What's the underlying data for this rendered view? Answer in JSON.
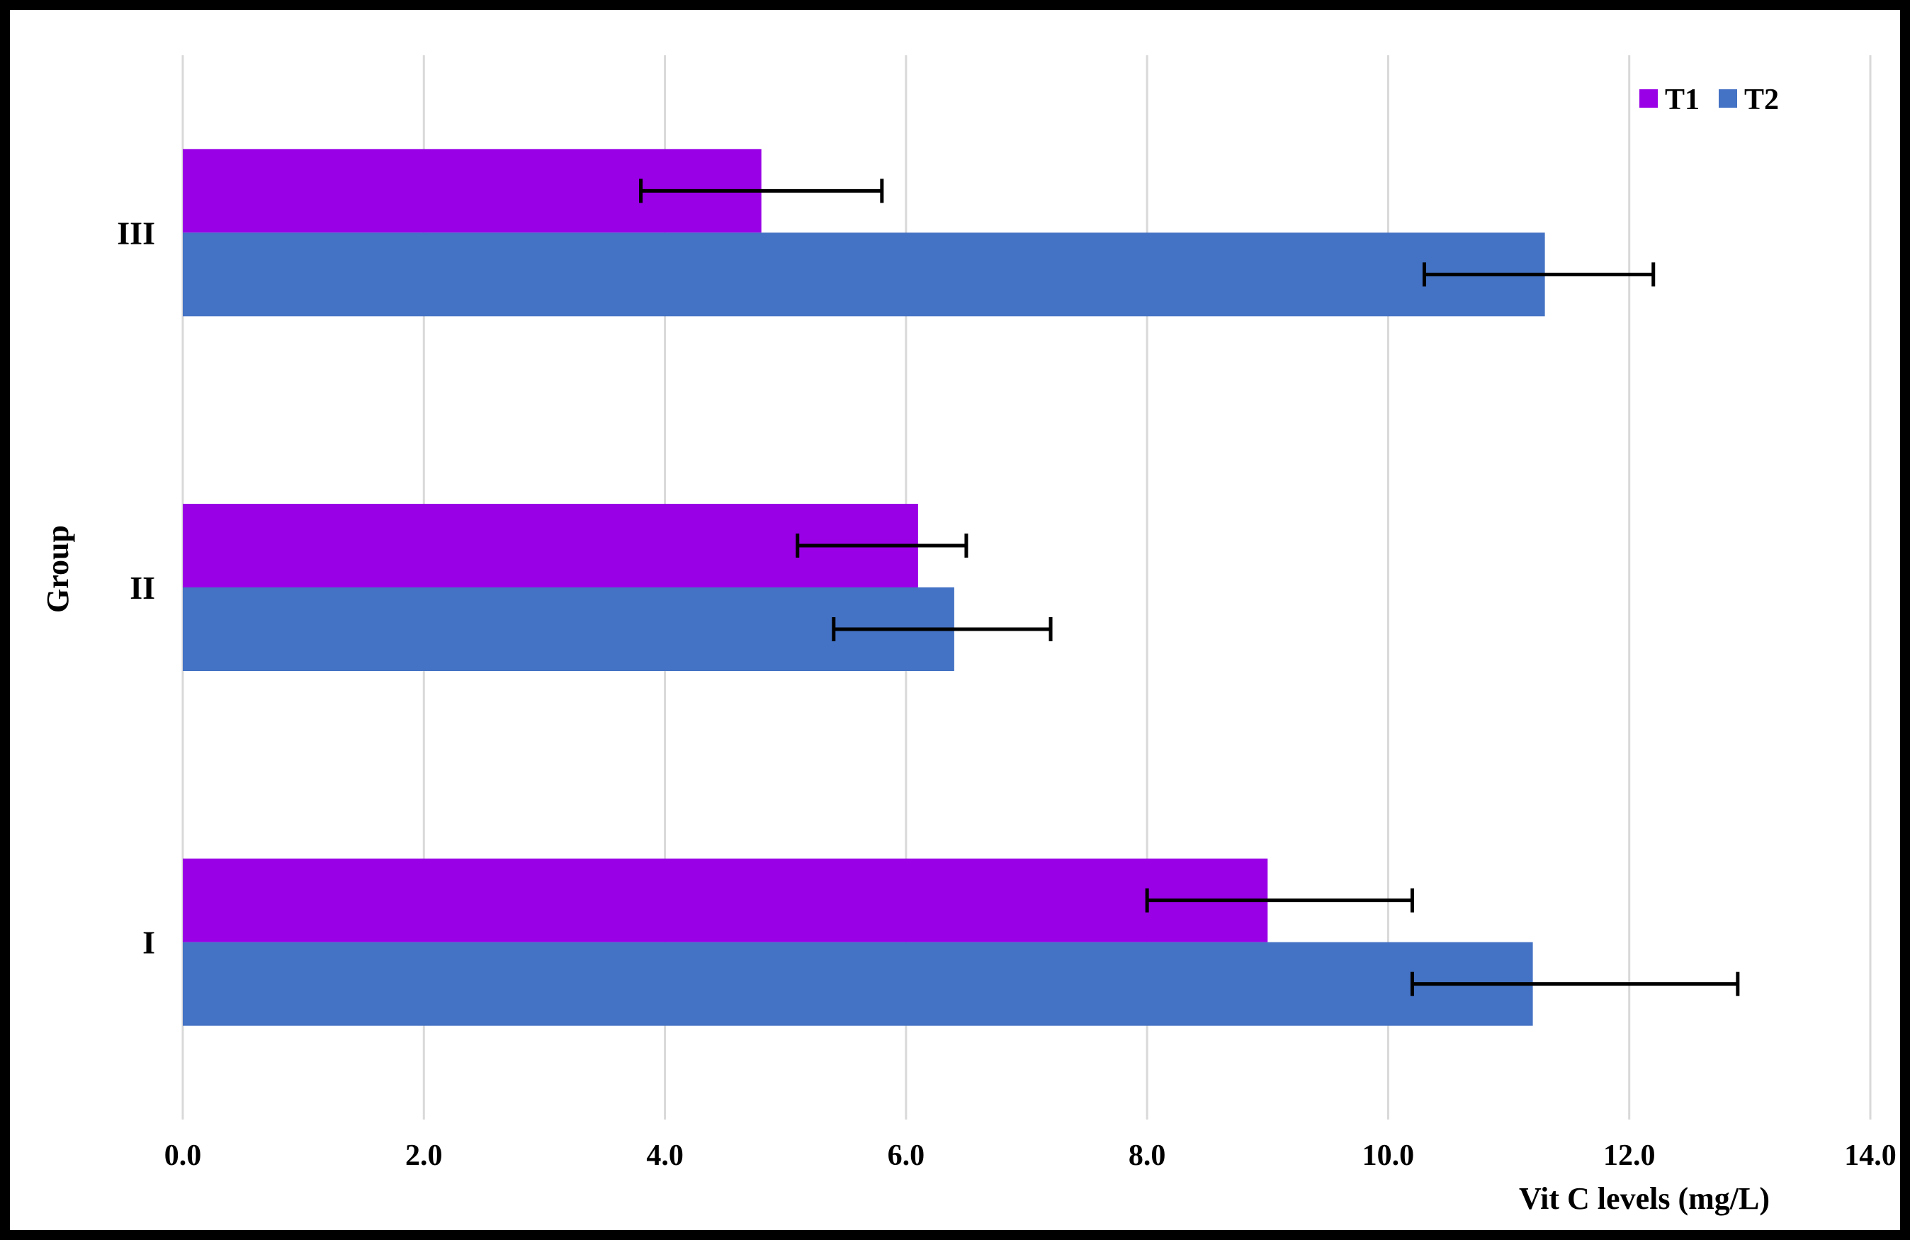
{
  "frame": {
    "border_color": "#000000",
    "background": "#FFFFFF"
  },
  "chart_data": {
    "type": "bar",
    "orientation": "horizontal",
    "title": "",
    "xlabel": "Vit C levels (mg/L)",
    "ylabel": "Group",
    "categories": [
      "I",
      "II",
      "III"
    ],
    "display_order_top_to_bottom": [
      "III",
      "II",
      "I"
    ],
    "series": [
      {
        "name": "T1",
        "color": "#9900E6",
        "values": [
          9.0,
          6.1,
          4.8
        ],
        "error_low": [
          8.0,
          5.1,
          3.8
        ],
        "error_high": [
          10.2,
          6.5,
          5.8
        ]
      },
      {
        "name": "T2",
        "color": "#4472C4",
        "values": [
          11.2,
          6.4,
          11.3
        ],
        "error_low": [
          10.2,
          5.4,
          10.3
        ],
        "error_high": [
          12.9,
          7.2,
          12.2
        ]
      }
    ],
    "xlim": [
      0,
      14
    ],
    "xticks": [
      0,
      2,
      4,
      6,
      8,
      10,
      12,
      14
    ],
    "xtick_labels": [
      "0.0",
      "2.0",
      "4.0",
      "6.0",
      "8.0",
      "10.0",
      "12.0",
      "14.0"
    ],
    "grid": true,
    "gridline_color": "#D9D9D9",
    "error_bar_color": "#000000",
    "legend_position": "top-right"
  }
}
